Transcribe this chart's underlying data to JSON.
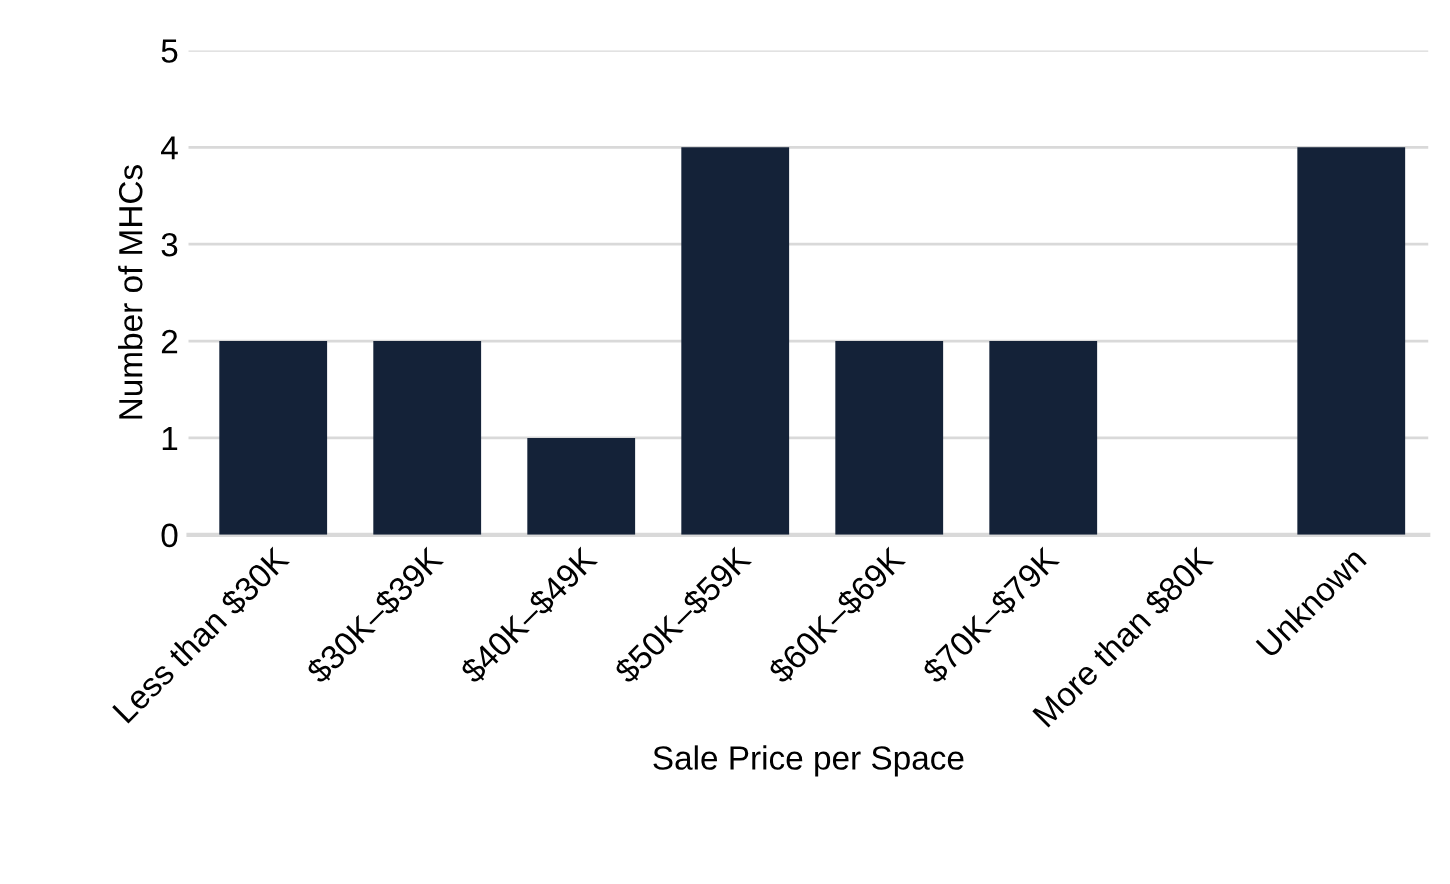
{
  "chart_data": {
    "type": "bar",
    "xlabel": "Sale Price per Space",
    "ylabel": "Number of MHCs",
    "categories": [
      "Less than $30K",
      "$30K–$39K",
      "$40K–$49K",
      "$50K–$59K",
      "$60K–$69K",
      "$70K–$79K",
      "More than $80K",
      "Unknown"
    ],
    "values": [
      2,
      2,
      1,
      4,
      2,
      2,
      0,
      4
    ],
    "color": "#142238",
    "ylim": [
      0,
      5
    ],
    "yticks": [
      0,
      1,
      2,
      3,
      4,
      5
    ],
    "grid": "y"
  }
}
